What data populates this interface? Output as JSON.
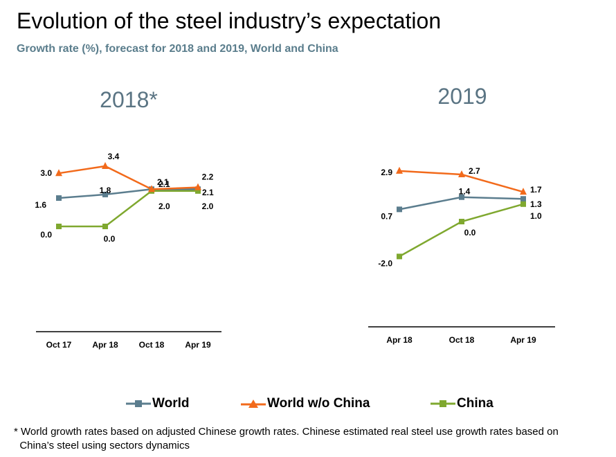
{
  "title": "Evolution of the steel industry’s expectation",
  "subtitle": "Growth rate (%), forecast for 2018 and 2019, World and China",
  "footnote": "* World growth rates based on adjusted Chinese growth rates. Chinese estimated real steel use growth rates based on\n  China’s steel using sectors dynamics",
  "legend": [
    {
      "name": "World",
      "color": "#5b7d8e",
      "marker": "square"
    },
    {
      "name": "World w/o China",
      "color": "#f26a1b",
      "marker": "triangle"
    },
    {
      "name": "China",
      "color": "#7fa82f",
      "marker": "square"
    }
  ],
  "chart_data": [
    {
      "type": "line",
      "title": "2018*",
      "categories": [
        "Oct 17",
        "Apr 18",
        "Oct 18",
        "Apr 19"
      ],
      "series": [
        {
          "name": "World",
          "values": [
            1.6,
            1.8,
            2.1,
            2.1
          ],
          "labels": [
            "1.6",
            "1.8",
            "2.1",
            "2.1"
          ]
        },
        {
          "name": "World w/o China",
          "values": [
            3.0,
            3.4,
            2.1,
            2.2
          ],
          "labels": [
            "3.0",
            "3.4",
            "2.1",
            "2.2"
          ]
        },
        {
          "name": "China",
          "values": [
            0.0,
            0.0,
            2.0,
            2.0
          ],
          "labels": [
            "0.0",
            "0.0",
            "2.0",
            "2.0"
          ]
        }
      ],
      "ylim": [
        -4.5,
        4.0
      ]
    },
    {
      "type": "line",
      "title": "2019",
      "categories": [
        "Apr 18",
        "Oct 18",
        "Apr 19"
      ],
      "series": [
        {
          "name": "World",
          "values": [
            0.7,
            1.4,
            1.3
          ],
          "labels": [
            "0.7",
            "1.4",
            "1.3"
          ]
        },
        {
          "name": "World w/o China",
          "values": [
            2.9,
            2.7,
            1.7
          ],
          "labels": [
            "2.9",
            "2.7",
            "1.7"
          ]
        },
        {
          "name": "China",
          "values": [
            -2.0,
            0.0,
            1.0
          ],
          "labels": [
            "-2.0",
            "0.0",
            "1.0"
          ]
        }
      ],
      "ylim": [
        -6.0,
        3.0
      ]
    }
  ]
}
